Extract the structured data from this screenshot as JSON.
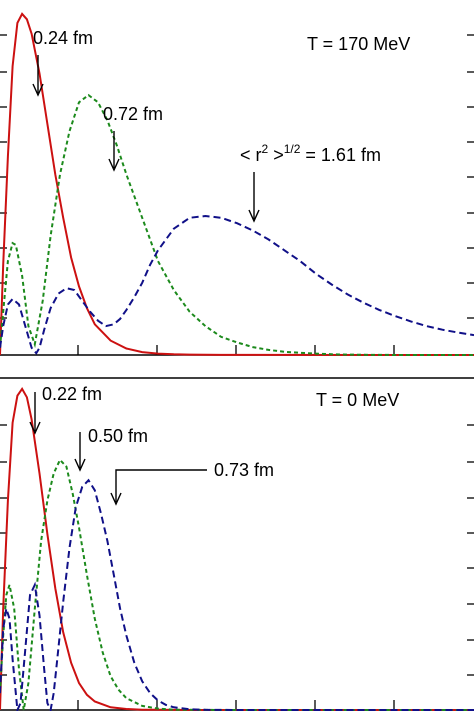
{
  "colors": {
    "solid": "#cc1111",
    "dotted": "#1c8a1c",
    "dashed": "#101088"
  },
  "chart_data": [
    {
      "type": "line",
      "panel": "top",
      "title": "T = 170 MeV",
      "xlabel": "",
      "ylabel": "",
      "xlim": [
        0,
        3
      ],
      "ylim": [
        0,
        1.0
      ],
      "series": [
        {
          "style": "solid",
          "x": [
            0,
            0.02,
            0.05,
            0.08,
            0.11,
            0.14,
            0.17,
            0.2,
            0.25,
            0.3,
            0.35,
            0.4,
            0.45,
            0.5,
            0.55,
            0.6,
            0.7,
            0.8,
            0.9,
            1.0,
            1.1,
            1.2,
            1.3,
            1.4,
            3.0
          ],
          "y": [
            0,
            0.25,
            0.55,
            0.8,
            0.92,
            0.945,
            0.93,
            0.89,
            0.78,
            0.64,
            0.5,
            0.38,
            0.27,
            0.19,
            0.13,
            0.085,
            0.04,
            0.018,
            0.008,
            0.004,
            0.002,
            0.001,
            0.0005,
            0.0002,
            0
          ]
        },
        {
          "style": "dotted",
          "x": [
            0,
            0.02,
            0.05,
            0.08,
            0.1,
            0.14,
            0.18,
            0.22,
            0.27,
            0.32,
            0.38,
            0.44,
            0.5,
            0.56,
            0.62,
            0.68,
            0.74,
            0.8,
            0.9,
            1.0,
            1.1,
            1.2,
            1.3,
            1.4,
            1.5,
            1.6,
            1.7,
            1.8,
            1.9,
            2.0,
            2.1,
            2.2,
            2.3,
            2.4,
            2.6,
            3.0
          ],
          "y": [
            0.02,
            0.12,
            0.26,
            0.31,
            0.305,
            0.22,
            0.08,
            0.03,
            0.15,
            0.33,
            0.5,
            0.62,
            0.7,
            0.72,
            0.7,
            0.65,
            0.58,
            0.5,
            0.38,
            0.26,
            0.18,
            0.12,
            0.08,
            0.05,
            0.035,
            0.022,
            0.014,
            0.009,
            0.006,
            0.004,
            0.002,
            0.001,
            0.0006,
            0.0003,
            0.0001,
            0
          ]
        },
        {
          "style": "dashed",
          "x": [
            0,
            0.02,
            0.05,
            0.08,
            0.12,
            0.16,
            0.2,
            0.23,
            0.25,
            0.28,
            0.32,
            0.37,
            0.42,
            0.47,
            0.52,
            0.57,
            0.62,
            0.67,
            0.72,
            0.76,
            0.8,
            0.85,
            0.9,
            0.95,
            1.0,
            1.1,
            1.2,
            1.3,
            1.4,
            1.5,
            1.6,
            1.7,
            1.8,
            1.9,
            2.0,
            2.1,
            2.2,
            2.3,
            2.4,
            2.5,
            2.6,
            2.7,
            2.8,
            2.9,
            3.0
          ],
          "y": [
            0.02,
            0.08,
            0.14,
            0.155,
            0.14,
            0.08,
            0.02,
            0.005,
            0.02,
            0.07,
            0.13,
            0.17,
            0.185,
            0.18,
            0.15,
            0.12,
            0.095,
            0.08,
            0.085,
            0.1,
            0.125,
            0.16,
            0.2,
            0.25,
            0.29,
            0.35,
            0.38,
            0.385,
            0.38,
            0.365,
            0.345,
            0.32,
            0.29,
            0.26,
            0.225,
            0.195,
            0.168,
            0.145,
            0.125,
            0.108,
            0.093,
            0.08,
            0.07,
            0.062,
            0.055
          ]
        }
      ],
      "annotations": [
        {
          "text": "0.24 fm",
          "target_x": 0.23,
          "target_y": 0.945
        },
        {
          "text": "0.72 fm",
          "target_x": 0.72,
          "target_y": 0.72
        },
        {
          "text": "1.61 fm",
          "prefix": "< r",
          "sup1": "2",
          "mid": " >",
          "sup2": "1/2",
          "eq": " = ",
          "target_x": 1.61,
          "target_y": 0.385
        }
      ]
    },
    {
      "type": "line",
      "panel": "bottom",
      "title": "T = 0 MeV",
      "xlabel": "",
      "ylabel": "",
      "xlim": [
        0,
        3
      ],
      "ylim": [
        0,
        1.0
      ],
      "series": [
        {
          "style": "solid",
          "x": [
            0,
            0.02,
            0.05,
            0.08,
            0.11,
            0.14,
            0.17,
            0.2,
            0.25,
            0.3,
            0.35,
            0.4,
            0.45,
            0.5,
            0.55,
            0.6,
            0.7,
            0.8,
            0.9,
            1.0,
            1.1,
            1.2,
            3.0
          ],
          "y": [
            0,
            0.3,
            0.62,
            0.85,
            0.93,
            0.95,
            0.925,
            0.86,
            0.7,
            0.52,
            0.36,
            0.23,
            0.14,
            0.08,
            0.045,
            0.025,
            0.008,
            0.003,
            0.001,
            0.0005,
            0.0002,
            0.0001,
            0
          ]
        },
        {
          "style": "dotted",
          "x": [
            0,
            0.02,
            0.04,
            0.06,
            0.09,
            0.12,
            0.15,
            0.18,
            0.22,
            0.26,
            0.3,
            0.34,
            0.38,
            0.42,
            0.46,
            0.5,
            0.55,
            0.6,
            0.65,
            0.7,
            0.75,
            0.8,
            0.9,
            1.0,
            1.1,
            1.2,
            1.3,
            1.4,
            3.0
          ],
          "y": [
            0.05,
            0.22,
            0.34,
            0.37,
            0.3,
            0.12,
            0.0,
            0.08,
            0.3,
            0.5,
            0.62,
            0.7,
            0.74,
            0.72,
            0.64,
            0.54,
            0.4,
            0.27,
            0.17,
            0.1,
            0.06,
            0.035,
            0.012,
            0.004,
            0.001,
            0.0005,
            0.0002,
            0.0001,
            0
          ]
        },
        {
          "style": "dashed",
          "x": [
            0,
            0.02,
            0.04,
            0.06,
            0.08,
            0.11,
            0.13,
            0.16,
            0.19,
            0.22,
            0.25,
            0.28,
            0.3,
            0.32,
            0.34,
            0.36,
            0.4,
            0.44,
            0.48,
            0.52,
            0.56,
            0.6,
            0.64,
            0.68,
            0.72,
            0.76,
            0.8,
            0.85,
            0.9,
            0.95,
            1.0,
            1.05,
            1.1,
            1.2,
            1.3,
            1.4,
            1.5,
            1.6,
            3.0
          ],
          "y": [
            0.05,
            0.24,
            0.3,
            0.27,
            0.15,
            0.0,
            0.02,
            0.18,
            0.34,
            0.37,
            0.28,
            0.12,
            0.02,
            0.0,
            0.05,
            0.14,
            0.32,
            0.48,
            0.6,
            0.66,
            0.68,
            0.65,
            0.58,
            0.5,
            0.4,
            0.3,
            0.22,
            0.14,
            0.085,
            0.05,
            0.028,
            0.015,
            0.008,
            0.002,
            0.0006,
            0.0002,
            0.0001,
            5e-05,
            0
          ]
        }
      ],
      "annotations": [
        {
          "text": "0.22 fm",
          "target_x": 0.21,
          "target_y": 0.95
        },
        {
          "text": "0.50 fm",
          "target_x": 0.48,
          "target_y": 0.74
        },
        {
          "text": "0.73 fm",
          "target_x": 0.72,
          "target_y": 0.68
        }
      ]
    }
  ]
}
